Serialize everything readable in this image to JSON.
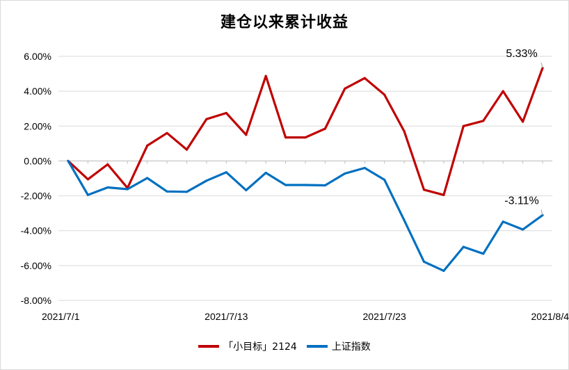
{
  "chart_data": {
    "type": "line",
    "title": "建仓以来累计收益",
    "xlabel": "",
    "ylabel": "",
    "ylim": [
      -8,
      6
    ],
    "yticks": [
      "6.00%",
      "4.00%",
      "2.00%",
      "0.00%",
      "-2.00%",
      "-4.00%",
      "-6.00%",
      "-8.00%"
    ],
    "grid": true,
    "legend_position": "bottom",
    "x": [
      "2021/7/1",
      "2021/7/2",
      "2021/7/5",
      "2021/7/6",
      "2021/7/7",
      "2021/7/8",
      "2021/7/9",
      "2021/7/12",
      "2021/7/13",
      "2021/7/14",
      "2021/7/15",
      "2021/7/16",
      "2021/7/19",
      "2021/7/20",
      "2021/7/21",
      "2021/7/22",
      "2021/7/23",
      "2021/7/26",
      "2021/7/27",
      "2021/7/28",
      "2021/7/29",
      "2021/7/30",
      "2021/8/2",
      "2021/8/3",
      "2021/8/4"
    ],
    "xtick_labels": [
      {
        "index": 0,
        "label": "2021/7/1"
      },
      {
        "index": 8,
        "label": "2021/7/13"
      },
      {
        "index": 16,
        "label": "2021/7/23"
      },
      {
        "index": 24,
        "label": "2021/8/4"
      }
    ],
    "series": [
      {
        "name": "「小目标」2124",
        "color": "#c00000",
        "values": [
          0.0,
          -1.05,
          -0.2,
          -1.55,
          0.88,
          1.6,
          0.65,
          2.4,
          2.75,
          1.5,
          4.87,
          1.35,
          1.35,
          1.85,
          4.15,
          4.75,
          3.8,
          1.7,
          -1.65,
          -1.95,
          2.0,
          2.3,
          4.0,
          2.25,
          5.33
        ],
        "end_label": "5.33%"
      },
      {
        "name": "上证指数",
        "color": "#0070c0",
        "values": [
          0.0,
          -1.95,
          -1.52,
          -1.62,
          -0.98,
          -1.75,
          -1.77,
          -1.13,
          -0.65,
          -1.68,
          -0.68,
          -1.38,
          -1.38,
          -1.4,
          -0.72,
          -0.4,
          -1.08,
          -3.4,
          -5.78,
          -6.3,
          -4.93,
          -5.32,
          -3.48,
          -3.93,
          -3.11
        ],
        "end_label": "-3.11%"
      }
    ]
  }
}
